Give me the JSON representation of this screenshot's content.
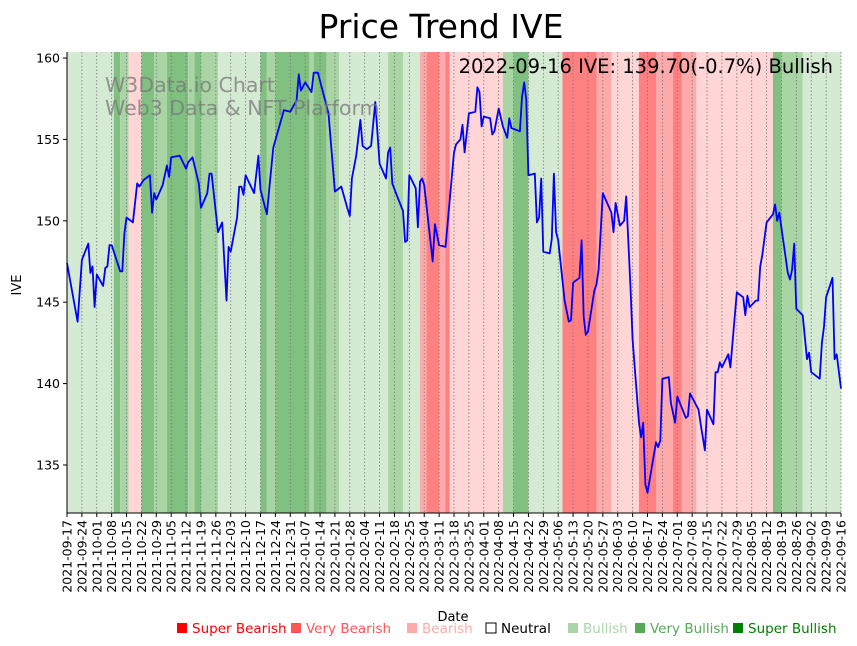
{
  "chart_data": {
    "type": "line",
    "title": "Price Trend IVE",
    "xlabel": "Date",
    "ylabel": "IVE",
    "annotation": "2022-09-16 IVE: 139.70(-0.7%) Bullish",
    "watermark": [
      "W3Data.io Chart",
      "Web3 Data & NFT Platform"
    ],
    "x_start": "2021-09-17",
    "x_end": "2022-09-16",
    "ylim": [
      132.05,
      160.37
    ],
    "yticks": [
      135,
      140,
      145,
      150,
      155,
      160
    ],
    "xticks": [
      "2021-09-17",
      "2021-09-24",
      "2021-10-01",
      "2021-10-08",
      "2021-10-15",
      "2021-10-22",
      "2021-10-29",
      "2021-11-05",
      "2021-11-12",
      "2021-11-19",
      "2021-11-26",
      "2021-12-03",
      "2021-12-10",
      "2021-12-17",
      "2021-12-24",
      "2021-12-31",
      "2022-01-07",
      "2022-01-14",
      "2022-01-21",
      "2022-01-28",
      "2022-02-04",
      "2022-02-11",
      "2022-02-18",
      "2022-02-25",
      "2022-03-04",
      "2022-03-11",
      "2022-03-18",
      "2022-03-25",
      "2022-04-01",
      "2022-04-08",
      "2022-04-15",
      "2022-04-22",
      "2022-04-29",
      "2022-05-06",
      "2022-05-13",
      "2022-05-20",
      "2022-05-27",
      "2022-06-03",
      "2022-06-10",
      "2022-06-17",
      "2022-06-24",
      "2022-07-01",
      "2022-07-08",
      "2022-07-15",
      "2022-07-22",
      "2022-07-29",
      "2022-08-05",
      "2022-08-12",
      "2022-08-19",
      "2022-08-26",
      "2022-09-02",
      "2022-09-09",
      "2022-09-16"
    ],
    "grid": "vertical dotted",
    "series": [
      {
        "name": "IVE",
        "color": "#0000ff",
        "x_unit": "days since 2021-09-17",
        "points": [
          [
            0,
            147.4
          ],
          [
            5,
            143.8
          ],
          [
            7,
            147.6
          ],
          [
            10,
            148.6
          ],
          [
            11,
            146.8
          ],
          [
            12,
            147.2
          ],
          [
            13,
            144.7
          ],
          [
            14,
            146.7
          ],
          [
            17,
            146.0
          ],
          [
            18,
            147.1
          ],
          [
            19,
            147.2
          ],
          [
            20,
            148.5
          ],
          [
            21,
            148.5
          ],
          [
            25,
            146.9
          ],
          [
            26,
            146.9
          ],
          [
            27,
            149.2
          ],
          [
            28,
            150.2
          ],
          [
            31,
            149.9
          ],
          [
            33,
            152.3
          ],
          [
            34,
            152.1
          ],
          [
            36,
            152.5
          ],
          [
            39,
            152.8
          ],
          [
            40,
            150.5
          ],
          [
            41,
            151.7
          ],
          [
            42,
            151.3
          ],
          [
            45,
            152.2
          ],
          [
            47,
            153.4
          ],
          [
            48,
            152.7
          ],
          [
            49,
            153.9
          ],
          [
            53,
            154.0
          ],
          [
            56,
            153.2
          ],
          [
            57,
            153.6
          ],
          [
            59,
            153.9
          ],
          [
            62,
            152.3
          ],
          [
            63,
            150.8
          ],
          [
            66,
            151.7
          ],
          [
            67,
            152.9
          ],
          [
            68,
            152.9
          ],
          [
            71,
            149.3
          ],
          [
            73,
            149.9
          ],
          [
            75,
            145.1
          ],
          [
            76,
            148.4
          ],
          [
            77,
            148.1
          ],
          [
            80,
            150.2
          ],
          [
            81,
            152.1
          ],
          [
            82,
            152.1
          ],
          [
            83,
            151.6
          ],
          [
            84,
            152.8
          ],
          [
            88,
            151.7
          ],
          [
            90,
            154.0
          ],
          [
            91,
            151.9
          ],
          [
            94,
            150.4
          ],
          [
            95,
            151.8
          ],
          [
            97,
            154.5
          ],
          [
            102,
            156.8
          ],
          [
            105,
            156.7
          ],
          [
            108,
            157.4
          ],
          [
            109,
            159.0
          ],
          [
            110,
            158.0
          ],
          [
            112,
            158.5
          ],
          [
            115,
            157.9
          ],
          [
            116,
            159.1
          ],
          [
            118,
            159.1
          ],
          [
            119,
            158.6
          ],
          [
            123,
            156.6
          ],
          [
            126,
            151.8
          ],
          [
            129,
            152.1
          ],
          [
            132,
            150.7
          ],
          [
            133,
            150.3
          ],
          [
            134,
            152.6
          ],
          [
            136,
            154.0
          ],
          [
            138,
            156.2
          ],
          [
            139,
            154.6
          ],
          [
            141,
            154.4
          ],
          [
            143,
            154.6
          ],
          [
            145,
            157.3
          ],
          [
            147,
            153.5
          ],
          [
            150,
            152.6
          ],
          [
            151,
            154.2
          ],
          [
            152,
            154.5
          ],
          [
            153,
            152.3
          ],
          [
            155,
            151.6
          ],
          [
            158,
            150.6
          ],
          [
            159,
            148.7
          ],
          [
            160,
            148.8
          ],
          [
            161,
            152.8
          ],
          [
            164,
            152.0
          ],
          [
            165,
            149.6
          ],
          [
            166,
            152.4
          ],
          [
            167,
            152.6
          ],
          [
            168,
            152.2
          ],
          [
            172,
            147.5
          ],
          [
            173,
            149.8
          ],
          [
            175,
            148.5
          ],
          [
            178,
            148.4
          ],
          [
            182,
            154.2
          ],
          [
            183,
            154.7
          ],
          [
            185,
            155.0
          ],
          [
            186,
            155.9
          ],
          [
            187,
            154.2
          ],
          [
            189,
            156.6
          ],
          [
            192,
            156.7
          ],
          [
            193,
            158.2
          ],
          [
            194,
            157.9
          ],
          [
            195,
            155.8
          ],
          [
            196,
            156.4
          ],
          [
            199,
            156.3
          ],
          [
            200,
            155.3
          ],
          [
            201,
            155.5
          ],
          [
            203,
            156.9
          ],
          [
            205,
            155.8
          ],
          [
            207,
            155.1
          ],
          [
            208,
            156.3
          ],
          [
            209,
            155.7
          ],
          [
            213,
            155.5
          ],
          [
            214,
            157.6
          ],
          [
            215,
            158.5
          ],
          [
            216,
            157.4
          ],
          [
            217,
            152.8
          ],
          [
            220,
            152.9
          ],
          [
            221,
            149.9
          ],
          [
            222,
            150.2
          ],
          [
            223,
            152.6
          ],
          [
            224,
            148.1
          ],
          [
            227,
            148.0
          ],
          [
            228,
            148.9
          ],
          [
            229,
            152.9
          ],
          [
            230,
            149.3
          ],
          [
            231,
            148.8
          ],
          [
            234,
            145.1
          ],
          [
            236,
            143.8
          ],
          [
            237,
            143.9
          ],
          [
            238,
            146.2
          ],
          [
            241,
            146.5
          ],
          [
            242,
            148.8
          ],
          [
            243,
            144.1
          ],
          [
            244,
            143.0
          ],
          [
            245,
            143.2
          ],
          [
            248,
            145.7
          ],
          [
            249,
            146.1
          ],
          [
            250,
            147.0
          ],
          [
            252,
            151.7
          ],
          [
            256,
            150.5
          ],
          [
            257,
            149.3
          ],
          [
            258,
            151.1
          ],
          [
            260,
            149.7
          ],
          [
            262,
            150.0
          ],
          [
            263,
            151.5
          ],
          [
            265,
            145.9
          ],
          [
            266,
            142.7
          ],
          [
            269,
            137.6
          ],
          [
            270,
            136.7
          ],
          [
            271,
            137.6
          ],
          [
            272,
            133.8
          ],
          [
            273,
            133.3
          ],
          [
            277,
            136.4
          ],
          [
            278,
            136.1
          ],
          [
            279,
            136.5
          ],
          [
            280,
            140.3
          ],
          [
            283,
            140.4
          ],
          [
            284,
            138.8
          ],
          [
            286,
            137.6
          ],
          [
            287,
            139.2
          ],
          [
            291,
            137.9
          ],
          [
            292,
            138.0
          ],
          [
            293,
            139.4
          ],
          [
            297,
            138.4
          ],
          [
            298,
            137.5
          ],
          [
            300,
            135.9
          ],
          [
            301,
            138.4
          ],
          [
            304,
            137.5
          ],
          [
            305,
            140.7
          ],
          [
            306,
            140.7
          ],
          [
            307,
            141.3
          ],
          [
            308,
            141.0
          ],
          [
            311,
            141.8
          ],
          [
            312,
            141.0
          ],
          [
            315,
            145.6
          ],
          [
            318,
            145.3
          ],
          [
            319,
            144.2
          ],
          [
            320,
            145.4
          ],
          [
            321,
            144.7
          ],
          [
            324,
            145.1
          ],
          [
            325,
            145.1
          ],
          [
            326,
            147.2
          ],
          [
            327,
            147.9
          ],
          [
            329,
            149.9
          ],
          [
            332,
            150.4
          ],
          [
            333,
            151.0
          ],
          [
            334,
            150.0
          ],
          [
            335,
            150.5
          ],
          [
            339,
            146.8
          ],
          [
            340,
            146.4
          ],
          [
            341,
            147.0
          ],
          [
            342,
            148.6
          ],
          [
            343,
            144.6
          ],
          [
            346,
            144.2
          ],
          [
            348,
            141.5
          ],
          [
            349,
            141.9
          ],
          [
            350,
            140.7
          ],
          [
            354,
            140.3
          ],
          [
            355,
            142.5
          ],
          [
            356,
            143.5
          ],
          [
            357,
            145.3
          ],
          [
            360,
            146.5
          ],
          [
            361,
            141.5
          ],
          [
            362,
            141.8
          ],
          [
            364,
            139.7
          ]
        ]
      }
    ],
    "regime_colors": {
      "bullish": "#d5ead3",
      "very_bullish": "#a9d5a4",
      "super_bullish": "#80c080",
      "bearish": "#ffd5d5",
      "very_bearish": "#ffaaaa",
      "super_bearish": "#ff8080"
    },
    "regimes": [
      [
        "2021-09-17",
        "2021-10-09",
        "bullish"
      ],
      [
        "2021-10-09",
        "2021-10-12",
        "super_bullish"
      ],
      [
        "2021-10-12",
        "2021-10-16",
        "very_bullish"
      ],
      [
        "2021-10-16",
        "2021-10-22",
        "bearish"
      ],
      [
        "2021-10-22",
        "2021-10-28",
        "super_bullish"
      ],
      [
        "2021-10-28",
        "2021-11-03",
        "very_bullish"
      ],
      [
        "2021-11-03",
        "2021-11-13",
        "super_bullish"
      ],
      [
        "2021-11-13",
        "2021-11-16",
        "very_bullish"
      ],
      [
        "2021-11-16",
        "2021-11-19",
        "super_bullish"
      ],
      [
        "2021-11-19",
        "2021-11-27",
        "very_bullish"
      ],
      [
        "2021-11-27",
        "2021-12-17",
        "bullish"
      ],
      [
        "2021-12-17",
        "2021-12-20",
        "super_bullish"
      ],
      [
        "2021-12-20",
        "2021-12-24",
        "very_bullish"
      ],
      [
        "2021-12-24",
        "2022-01-09",
        "super_bullish"
      ],
      [
        "2022-01-09",
        "2022-01-11",
        "very_bullish"
      ],
      [
        "2022-01-11",
        "2022-01-17",
        "super_bullish"
      ],
      [
        "2022-01-17",
        "2022-01-23",
        "very_bullish"
      ],
      [
        "2022-01-23",
        "2022-02-15",
        "bullish"
      ],
      [
        "2022-02-15",
        "2022-02-22",
        "very_bullish"
      ],
      [
        "2022-02-22",
        "2022-03-02",
        "bullish"
      ],
      [
        "2022-03-02",
        "2022-03-05",
        "very_bearish"
      ],
      [
        "2022-03-05",
        "2022-03-11",
        "super_bearish"
      ],
      [
        "2022-03-11",
        "2022-03-14",
        "very_bearish"
      ],
      [
        "2022-03-14",
        "2022-03-16",
        "super_bearish"
      ],
      [
        "2022-03-16",
        "2022-04-10",
        "bearish"
      ],
      [
        "2022-04-10",
        "2022-04-15",
        "very_bullish"
      ],
      [
        "2022-04-15",
        "2022-04-22",
        "super_bullish"
      ],
      [
        "2022-04-22",
        "2022-05-08",
        "bullish"
      ],
      [
        "2022-05-08",
        "2022-05-24",
        "super_bearish"
      ],
      [
        "2022-05-24",
        "2022-05-31",
        "very_bearish"
      ],
      [
        "2022-05-31",
        "2022-06-13",
        "bearish"
      ],
      [
        "2022-06-13",
        "2022-06-21",
        "super_bearish"
      ],
      [
        "2022-06-21",
        "2022-06-29",
        "very_bearish"
      ],
      [
        "2022-06-29",
        "2022-07-03",
        "super_bearish"
      ],
      [
        "2022-07-03",
        "2022-07-10",
        "very_bearish"
      ],
      [
        "2022-07-10",
        "2022-08-15",
        "bearish"
      ],
      [
        "2022-08-15",
        "2022-08-19",
        "super_bullish"
      ],
      [
        "2022-08-19",
        "2022-08-29",
        "very_bullish"
      ],
      [
        "2022-08-29",
        "2022-09-16",
        "bullish"
      ]
    ],
    "legend": {
      "placement": "bottom",
      "items": [
        {
          "label": "Super Bearish",
          "color": "#ff0000"
        },
        {
          "label": "Very Bearish",
          "color": "#ff5555"
        },
        {
          "label": "Bearish",
          "color": "#ffaaaa"
        },
        {
          "label": "Neutral",
          "color": "#000000",
          "hollow": true
        },
        {
          "label": "Bullish",
          "color": "#aad5aa"
        },
        {
          "label": "Very Bullish",
          "color": "#55aa55"
        },
        {
          "label": "Super Bullish",
          "color": "#008000"
        }
      ]
    }
  }
}
